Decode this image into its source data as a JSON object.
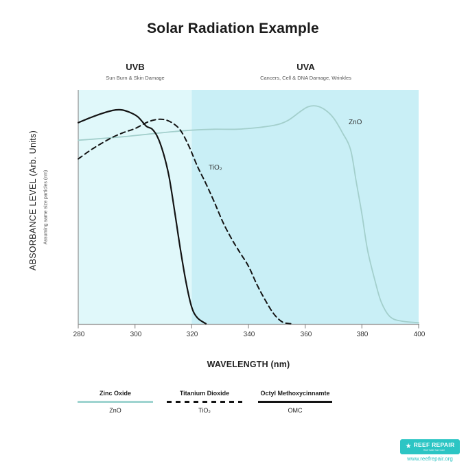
{
  "title": "Solar Radiation Example",
  "regions": {
    "uvb": {
      "label": "UVB",
      "sub": "Sun Burn & Skin Damage"
    },
    "uva": {
      "label": "UVA",
      "sub": "Cancers, Cell & DNA Damage, Wrinkles"
    }
  },
  "axes": {
    "y_label": "ABSORBANCE LEVEL (Arb. Units)",
    "y_sub": "Assuming same size particles (nm)",
    "x_label": "WAVELENGTH (nm)"
  },
  "annotations": {
    "zno": "ZnO",
    "tio2": "TiO₂"
  },
  "legend": [
    {
      "name": "Zinc Oxide",
      "abbr": "ZnO",
      "style": "solid-teal"
    },
    {
      "name": "Titanium Dioxide",
      "abbr": "TiO₂",
      "style": "dashed-black"
    },
    {
      "name": "Octyl Methoxycinnamte",
      "abbr": "OMC",
      "style": "solid-black"
    }
  ],
  "footer": {
    "brand": "REEF REPAIR",
    "star_icon": "★",
    "tagline": "Reef Safe Sun Care",
    "url": "www.reefrepair.org"
  },
  "colors": {
    "uvb_bg": "#e0f8fa",
    "uva_bg": "#c9eff6",
    "zno_line": "#a3cfcc",
    "black_line": "#141414",
    "axis": "#8f8f8f",
    "brand_teal": "#2cc5c4"
  },
  "chart_data": {
    "type": "line",
    "title": "Solar Radiation Example",
    "xlabel": "WAVELENGTH (nm)",
    "ylabel": "ABSORBANCE LEVEL (Arb. Units)",
    "xlim": [
      280,
      400
    ],
    "ylim": [
      0,
      1
    ],
    "x_ticks": [
      280,
      300,
      320,
      340,
      360,
      380,
      400
    ],
    "grid": false,
    "legend_position": "bottom",
    "regions": [
      {
        "name": "UVB",
        "range": [
          280,
          320
        ],
        "color": "#e0f8fa"
      },
      {
        "name": "UVA",
        "range": [
          320,
          400
        ],
        "color": "#c9eff6"
      }
    ],
    "series": [
      {
        "name": "ZnO",
        "color": "#a3cfcc",
        "width": 1.8,
        "dash": null,
        "x": [
          280,
          288,
          296,
          304,
          312,
          320,
          328,
          336,
          344,
          350,
          354,
          358,
          361,
          364,
          367,
          370,
          373,
          376,
          378,
          380,
          382,
          385,
          387,
          390,
          394,
          400
        ],
        "y": [
          0.785,
          0.792,
          0.8,
          0.81,
          0.82,
          0.828,
          0.832,
          0.832,
          0.84,
          0.851,
          0.87,
          0.905,
          0.928,
          0.931,
          0.915,
          0.88,
          0.82,
          0.745,
          0.607,
          0.47,
          0.315,
          0.167,
          0.088,
          0.03,
          0.012,
          0.005
        ]
      },
      {
        "name": "TiO2",
        "color": "#141414",
        "width": 2,
        "dash": [
          7,
          5
        ],
        "x": [
          280,
          284,
          288,
          292,
          296,
          300,
          304,
          307,
          310,
          313,
          316,
          319,
          322,
          325,
          328,
          331,
          334,
          337,
          340,
          343,
          346,
          349,
          352,
          355
        ],
        "y": [
          0.705,
          0.74,
          0.77,
          0.797,
          0.818,
          0.835,
          0.86,
          0.872,
          0.874,
          0.86,
          0.828,
          0.76,
          0.674,
          0.6,
          0.52,
          0.435,
          0.365,
          0.305,
          0.247,
          0.168,
          0.1,
          0.042,
          0.008,
          0.001
        ]
      },
      {
        "name": "OMC",
        "color": "#141414",
        "width": 2.2,
        "dash": null,
        "x": [
          280,
          284,
          288,
          292,
          295,
          298,
          301,
          304,
          306,
          308,
          310,
          312,
          314,
          316,
          318,
          320,
          322,
          325
        ],
        "y": [
          0.86,
          0.88,
          0.898,
          0.912,
          0.915,
          0.905,
          0.885,
          0.845,
          0.833,
          0.798,
          0.73,
          0.63,
          0.48,
          0.32,
          0.178,
          0.072,
          0.026,
          0.001
        ]
      }
    ]
  }
}
